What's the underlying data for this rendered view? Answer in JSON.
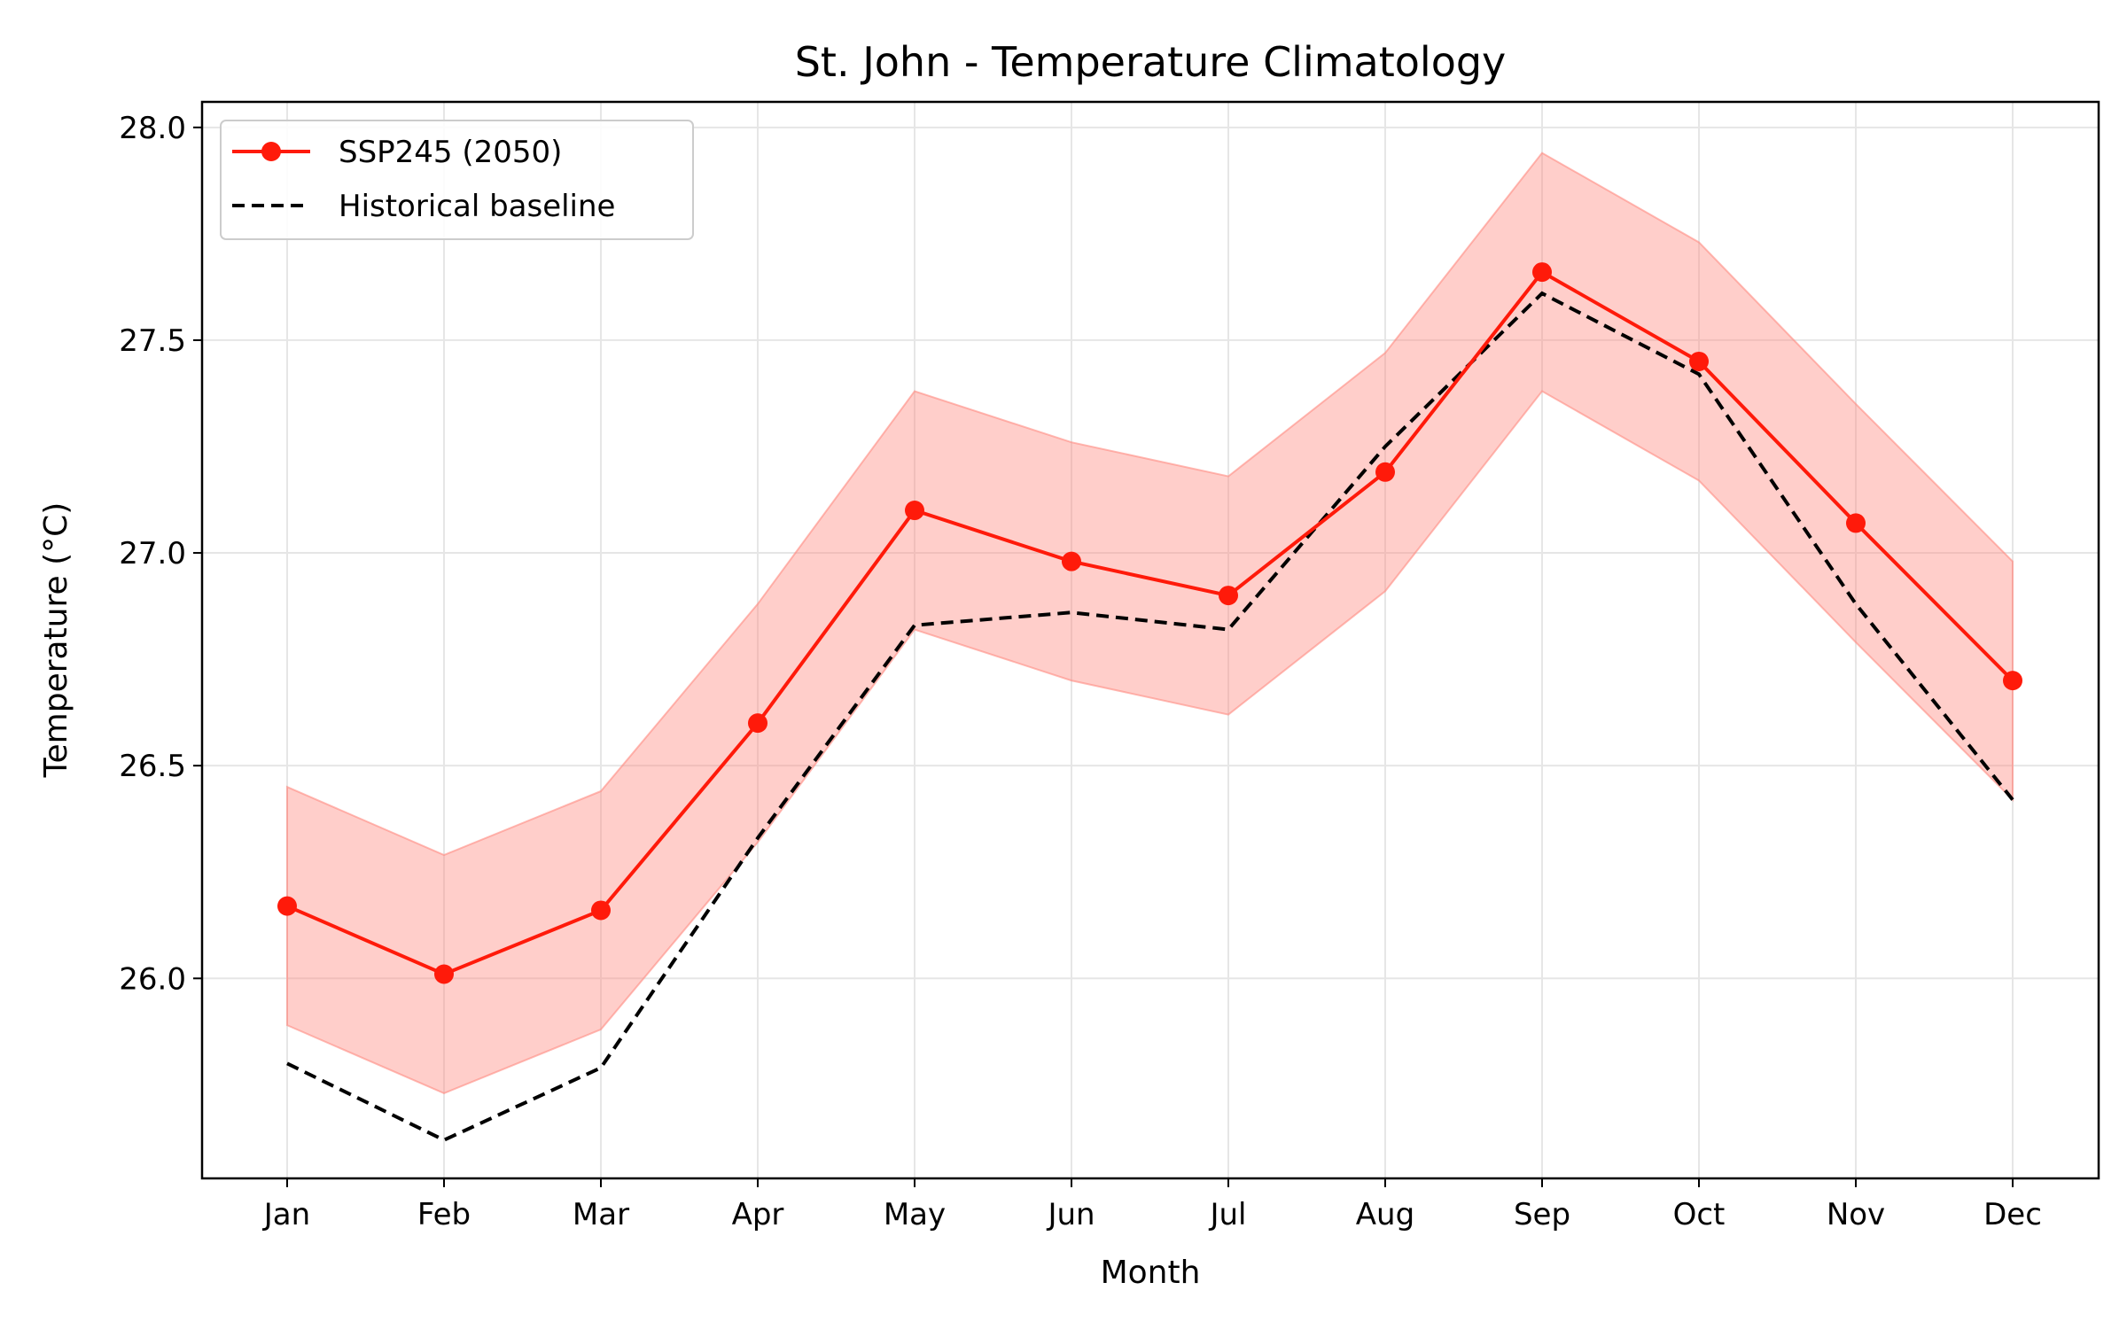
{
  "chart_data": {
    "type": "line",
    "title": "St. John - Temperature Climatology",
    "xlabel": "Month",
    "ylabel": "Temperature (°C)",
    "categories": [
      "Jan",
      "Feb",
      "Mar",
      "Apr",
      "May",
      "Jun",
      "Jul",
      "Aug",
      "Sep",
      "Oct",
      "Nov",
      "Dec"
    ],
    "ylim": [
      25.53,
      28.06
    ],
    "yticks": [
      "26.0",
      "26.5",
      "27.0",
      "27.5",
      "28.0"
    ],
    "grid": true,
    "legend_position": "top-left",
    "series": [
      {
        "name": "SSP245 (2050)",
        "color": "#ff1a0a",
        "style": "solid-with-markers",
        "values": [
          26.17,
          26.01,
          26.16,
          26.6,
          27.1,
          26.98,
          26.9,
          27.19,
          27.66,
          27.45,
          27.07,
          26.7
        ],
        "band_lower": [
          25.89,
          25.73,
          25.88,
          26.32,
          26.82,
          26.7,
          26.62,
          26.91,
          27.38,
          27.17,
          26.79,
          26.42
        ],
        "band_upper": [
          26.45,
          26.29,
          26.44,
          26.88,
          27.38,
          27.26,
          27.18,
          27.47,
          27.94,
          27.73,
          27.35,
          26.98
        ],
        "band_color": "#ff8a80"
      },
      {
        "name": "Historical baseline",
        "color": "#000000",
        "style": "dashed",
        "values": [
          25.8,
          25.62,
          25.79,
          26.33,
          26.83,
          26.86,
          26.82,
          27.25,
          27.61,
          27.42,
          26.88,
          26.42
        ]
      }
    ]
  }
}
